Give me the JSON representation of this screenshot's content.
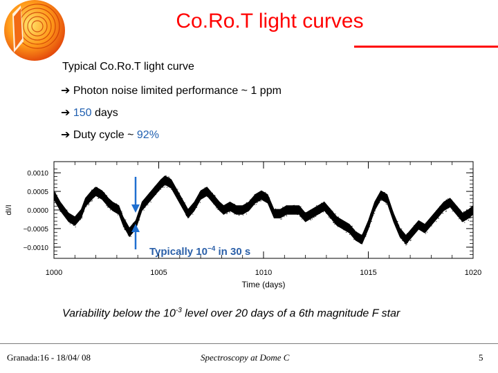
{
  "slide": {
    "title": "Co.Ro.T light curves",
    "bullets": {
      "b1": "Typical Co.Ro.T light curve",
      "b2": "Photon noise limited performance ~ 1 ppm",
      "b3_value": "150",
      "b3_text": " days",
      "b4_prefix": "Duty cycle ~ ",
      "b4_value": "92%"
    },
    "arrow_glyph": "➔",
    "caption_prefix": "Variability below the 10",
    "caption_exp": "-3",
    "caption_suffix": " level over 20 days of a 6th magnitude F star",
    "annotation": {
      "prefix": "Typically 10",
      "exp": "−4",
      "suffix": " in 30 s"
    },
    "footer": {
      "left": "Granada:16 - 18/04/ 08",
      "center": "Spectroscopy at Dome C",
      "right": "5"
    }
  },
  "colors": {
    "title": "#ff0000",
    "highlight": "#1f5fb0",
    "arrow": "#1f6fd0",
    "annotation": "#2a5fa8"
  },
  "icons": {
    "logo": "corot-star-logo",
    "bullet": "right-arrow-icon"
  },
  "chart_data": {
    "type": "line",
    "xlabel": "Time (days)",
    "ylabel": "dI/I",
    "xlim": [
      1000,
      1020
    ],
    "ylim": [
      -0.0013,
      0.0013
    ],
    "xticks": [
      1000,
      1005,
      1010,
      1015,
      1020
    ],
    "xtick_labels": [
      "1000",
      "1005",
      "1010",
      "1015",
      "1020"
    ],
    "yticks": [
      0.001,
      0.0005,
      0.0,
      -0.0005,
      -0.001
    ],
    "ytick_labels": [
      "0.0010",
      "0.0005",
      "0.0000",
      "−0.0005",
      "−0.0010"
    ],
    "noise_halfwidth": 0.00012,
    "x": [
      1000.0,
      1000.3,
      1000.7,
      1001.0,
      1001.3,
      1001.5,
      1001.8,
      1002.0,
      1002.3,
      1002.6,
      1002.8,
      1003.1,
      1003.3,
      1003.6,
      1003.9,
      1004.2,
      1004.5,
      1004.8,
      1005.1,
      1005.3,
      1005.6,
      1005.8,
      1006.1,
      1006.4,
      1006.7,
      1007.0,
      1007.3,
      1007.6,
      1007.9,
      1008.1,
      1008.4,
      1008.7,
      1009.0,
      1009.3,
      1009.6,
      1009.9,
      1010.2,
      1010.5,
      1010.8,
      1011.1,
      1011.4,
      1011.7,
      1012.0,
      1012.3,
      1012.6,
      1012.9,
      1013.2,
      1013.5,
      1013.8,
      1014.1,
      1014.4,
      1014.7,
      1015.0,
      1015.3,
      1015.6,
      1015.9,
      1016.2,
      1016.5,
      1016.8,
      1017.1,
      1017.4,
      1017.7,
      1018.0,
      1018.3,
      1018.6,
      1018.9,
      1019.2,
      1019.5,
      1019.8,
      1020.0
    ],
    "y": [
      0.0004,
      0.0001,
      -0.0002,
      -0.0003,
      -0.0001,
      0.0002,
      0.0004,
      0.0005,
      0.0004,
      0.0002,
      0.0001,
      0.0,
      -0.0003,
      -0.0006,
      -0.0004,
      0.0001,
      0.0003,
      0.0005,
      0.0007,
      0.0008,
      0.0007,
      0.0005,
      0.0002,
      -0.0001,
      0.0001,
      0.0004,
      0.0005,
      0.0003,
      0.0001,
      0.0,
      0.0001,
      0.0,
      0.0,
      0.0001,
      0.0003,
      0.0004,
      0.0003,
      -0.0001,
      -0.0001,
      0.0,
      0.0,
      0.0,
      -0.0002,
      -0.0001,
      0.0,
      0.0001,
      -0.0001,
      -0.0003,
      -0.0004,
      -0.0005,
      -0.0007,
      -0.0008,
      -0.0004,
      0.0001,
      0.0004,
      0.0003,
      -0.0002,
      -0.0006,
      -0.0008,
      -0.0006,
      -0.0004,
      -0.0005,
      -0.0003,
      -0.0001,
      0.0001,
      0.0002,
      0.0,
      -0.0002,
      -0.0001,
      0.0
    ]
  }
}
